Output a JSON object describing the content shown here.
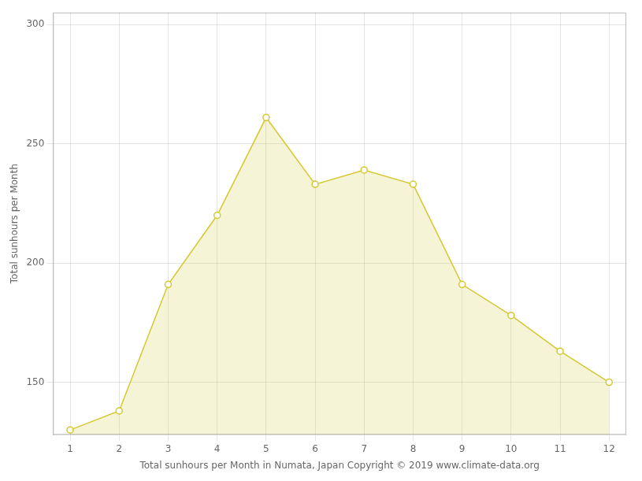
{
  "chart_data": {
    "type": "area",
    "x": [
      1,
      2,
      3,
      4,
      5,
      6,
      7,
      8,
      9,
      10,
      11,
      12
    ],
    "values": [
      130,
      138,
      191,
      220,
      261,
      233,
      239,
      233,
      191,
      178,
      163,
      150
    ],
    "color": "#D4C830",
    "marker": "o",
    "xlabel": "Total sunhours per Month in Numata, Japan Copyright © 2019 www.climate-data.org",
    "ylabel": "Total sunhours per Month",
    "xlim": [
      0.65,
      12.35
    ],
    "ylim": [
      128,
      305
    ],
    "xticks": [
      1,
      2,
      3,
      4,
      5,
      6,
      7,
      8,
      9,
      10,
      11,
      12
    ],
    "yticks": [
      150,
      200,
      250,
      300
    ],
    "grid": true
  }
}
